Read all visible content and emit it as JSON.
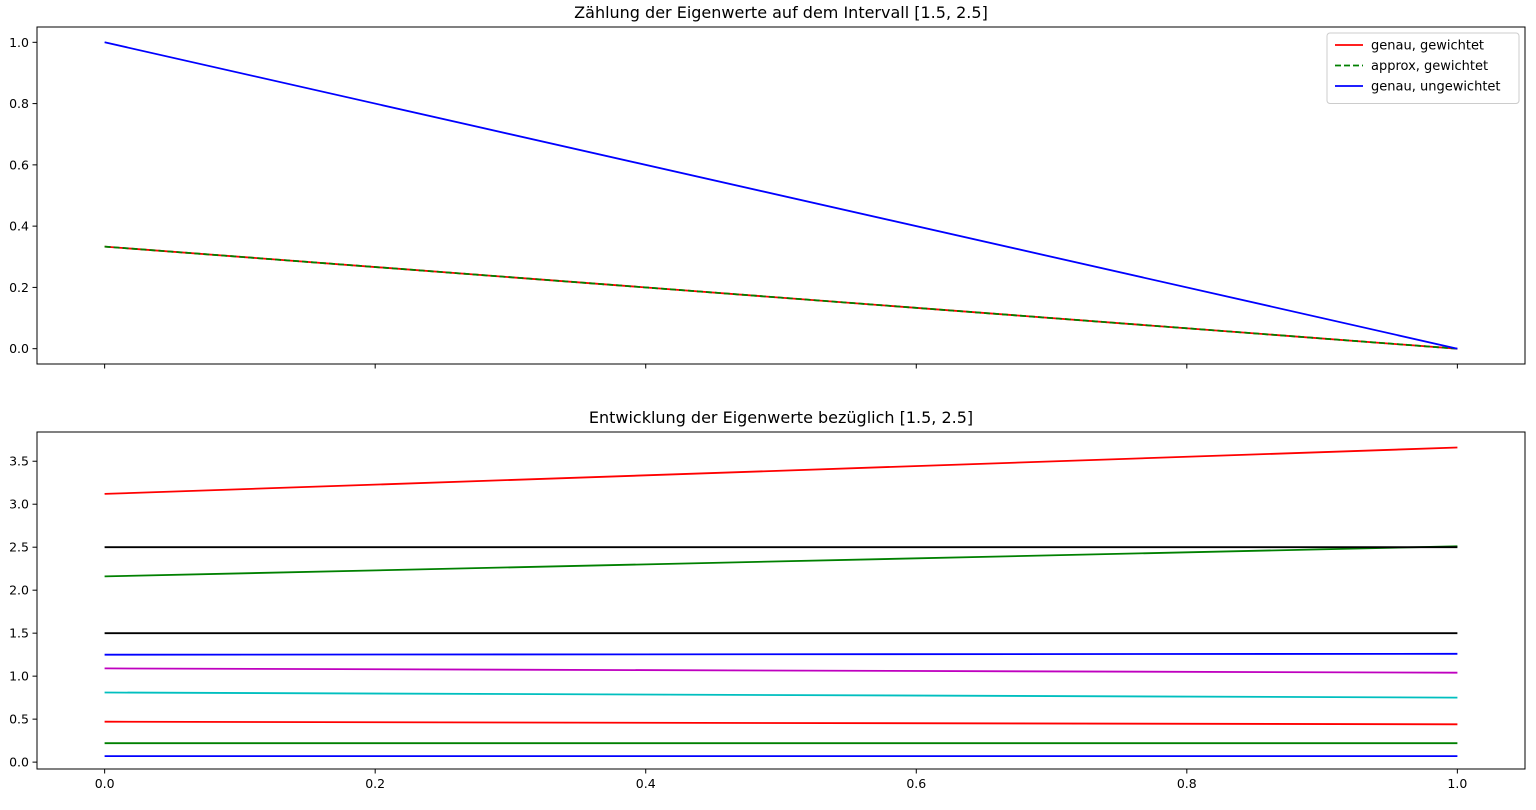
{
  "chart_data": [
    {
      "type": "line",
      "title": "Zählung der Eigenwerte auf dem Intervall [1.5, 2.5]",
      "xlim": [
        -0.05,
        1.05
      ],
      "ylim": [
        -0.05,
        1.05
      ],
      "xticks": [
        0.0,
        0.2,
        0.4,
        0.6,
        0.8,
        1.0
      ],
      "xtick_labels_shown": false,
      "yticks": [
        0.0,
        0.2,
        0.4,
        0.6,
        0.8,
        1.0
      ],
      "ytick_labels": [
        "0.0",
        "0.2",
        "0.4",
        "0.6",
        "0.8",
        "1.0"
      ],
      "legend_position": "top-right",
      "series": [
        {
          "name": "genau, gewichtet",
          "color": "#ff0000",
          "dash": "solid",
          "x": [
            0,
            1
          ],
          "y": [
            0.3333,
            0.0
          ]
        },
        {
          "name": "approx, gewichtet",
          "color": "#008000",
          "dash": "dashed",
          "x": [
            0,
            1
          ],
          "y": [
            0.3333,
            0.0
          ]
        },
        {
          "name": "genau, ungewichtet",
          "color": "#0000ff",
          "dash": "solid",
          "x": [
            0,
            1
          ],
          "y": [
            1.0,
            0.0
          ]
        }
      ]
    },
    {
      "type": "line",
      "title": "Entwicklung der Eigenwerte bezüglich [1.5, 2.5]",
      "xlim": [
        -0.05,
        1.05
      ],
      "ylim": [
        -0.08,
        3.84
      ],
      "xticks": [
        0.0,
        0.2,
        0.4,
        0.6,
        0.8,
        1.0
      ],
      "xtick_labels": [
        "0.0",
        "0.2",
        "0.4",
        "0.6",
        "0.8",
        "1.0"
      ],
      "yticks": [
        0.0,
        0.5,
        1.0,
        1.5,
        2.0,
        2.5,
        3.0,
        3.5
      ],
      "ytick_labels": [
        "0.0",
        "0.5",
        "1.0",
        "1.5",
        "2.0",
        "2.5",
        "3.0",
        "3.5"
      ],
      "series": [
        {
          "color": "#0000ff",
          "x": [
            0,
            1
          ],
          "y": [
            0.07,
            0.07
          ]
        },
        {
          "color": "#008000",
          "x": [
            0,
            1
          ],
          "y": [
            0.22,
            0.22
          ]
        },
        {
          "color": "#ff0000",
          "x": [
            0,
            1
          ],
          "y": [
            0.47,
            0.44
          ]
        },
        {
          "color": "#00bfbf",
          "x": [
            0,
            1
          ],
          "y": [
            0.81,
            0.75
          ]
        },
        {
          "color": "#bf00bf",
          "x": [
            0,
            1
          ],
          "y": [
            1.09,
            1.04
          ]
        },
        {
          "color": "#0000ff",
          "x": [
            0,
            1
          ],
          "y": [
            1.25,
            1.26
          ]
        },
        {
          "color": "#000000",
          "x": [
            0,
            1
          ],
          "y": [
            1.5,
            1.5
          ]
        },
        {
          "color": "#008000",
          "x": [
            0,
            1
          ],
          "y": [
            2.16,
            2.51
          ]
        },
        {
          "color": "#000000",
          "x": [
            0,
            1
          ],
          "y": [
            2.5,
            2.5
          ]
        },
        {
          "color": "#ff0000",
          "x": [
            0,
            1
          ],
          "y": [
            3.12,
            3.66
          ]
        }
      ]
    }
  ]
}
